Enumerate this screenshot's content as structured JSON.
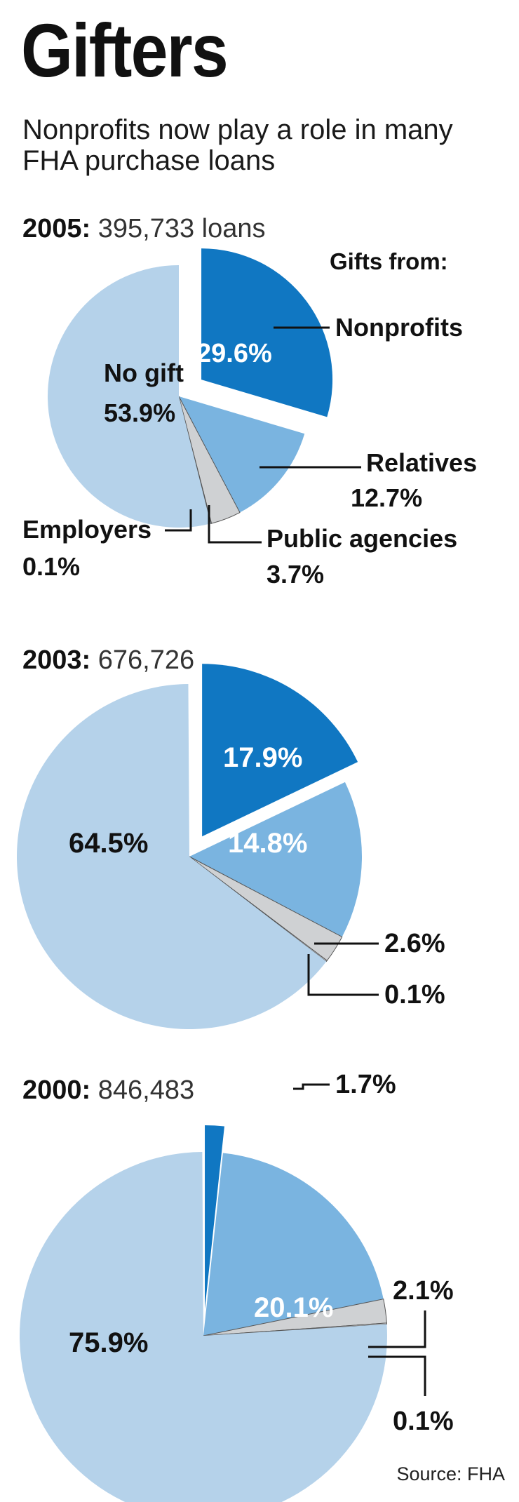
{
  "title": "Gifters",
  "subtitle": "Nonprofits now play a role in many FHA purchase loans",
  "source": "Source: FHA",
  "colors": {
    "no_gift": "#b5d2ea",
    "nonprofits": "#1077c2",
    "relatives": "#7ab4e0",
    "public": "#cfd1d3",
    "employers": "#e6e7e8",
    "line": "#111111"
  },
  "chart_data": [
    {
      "type": "pie",
      "year": "2005:",
      "loans": "395,733 loans",
      "legend_title": "Gifts from:",
      "slices": [
        {
          "key": "nonprofits",
          "label": "Nonprofits",
          "value": 29.6,
          "text": "29.6%",
          "exploded": true
        },
        {
          "key": "relatives",
          "label": "Relatives",
          "value": 12.7,
          "text": "12.7%"
        },
        {
          "key": "public",
          "label": "Public agencies",
          "value": 3.7,
          "text": "3.7%"
        },
        {
          "key": "employers",
          "label": "Employers",
          "value": 0.1,
          "text": "0.1%"
        },
        {
          "key": "no_gift",
          "label": "No gift",
          "value": 53.9,
          "text": "53.9%"
        }
      ]
    },
    {
      "type": "pie",
      "year": "2003:",
      "loans": "676,726",
      "slices": [
        {
          "key": "nonprofits",
          "value": 17.9,
          "text": "17.9%",
          "exploded": true
        },
        {
          "key": "relatives",
          "value": 14.8,
          "text": "14.8%"
        },
        {
          "key": "public",
          "value": 2.6,
          "text": "2.6%"
        },
        {
          "key": "employers",
          "value": 0.1,
          "text": "0.1%"
        },
        {
          "key": "no_gift",
          "value": 64.5,
          "text": "64.5%"
        }
      ]
    },
    {
      "type": "pie",
      "year": "2000:",
      "loans": "846,483",
      "slices": [
        {
          "key": "nonprofits",
          "value": 1.7,
          "text": "1.7%",
          "exploded": true
        },
        {
          "key": "relatives",
          "value": 20.1,
          "text": "20.1%"
        },
        {
          "key": "public",
          "value": 2.1,
          "text": "2.1%"
        },
        {
          "key": "employers",
          "value": 0.1,
          "text": "0.1%"
        },
        {
          "key": "no_gift",
          "value": 75.9,
          "text": "75.9%"
        }
      ]
    }
  ]
}
